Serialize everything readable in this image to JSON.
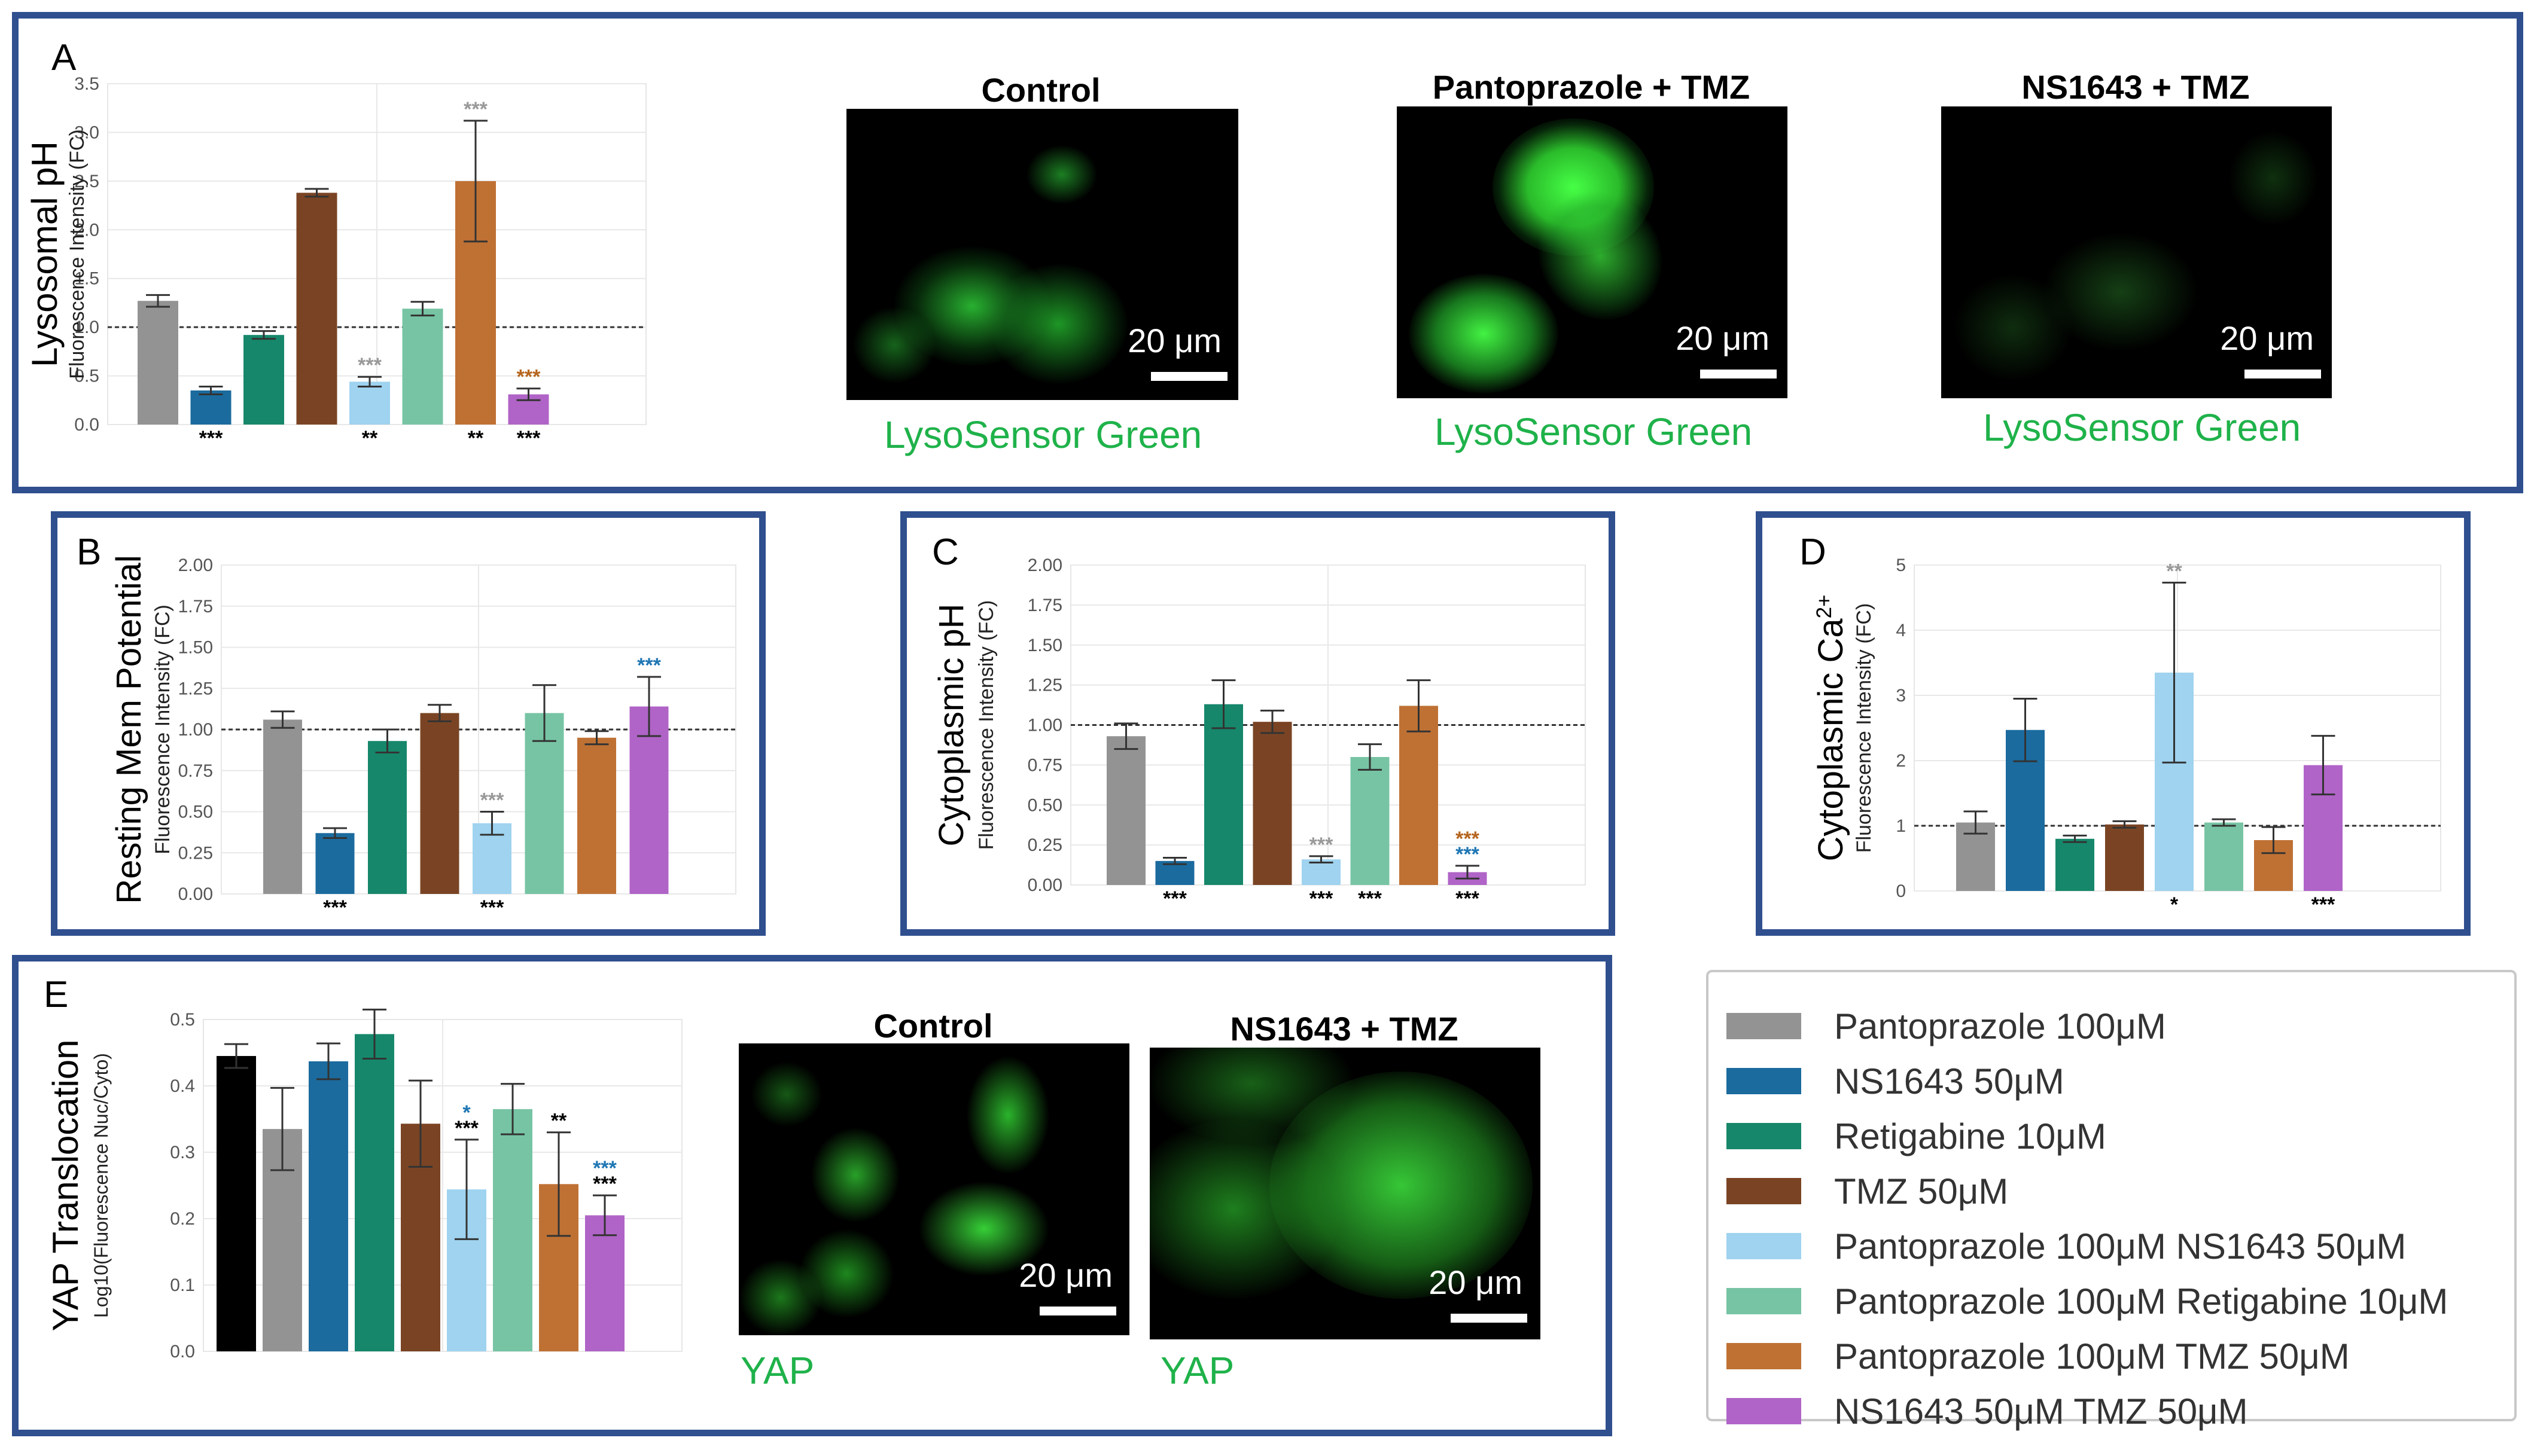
{
  "legend": [
    {
      "label": "Pantoprazole 100μM",
      "color": "#939393"
    },
    {
      "label": "NS1643 50μM",
      "color": "#1b6b9e"
    },
    {
      "label": "Retigabine 10μM",
      "color": "#16876a"
    },
    {
      "label": "TMZ 50μM",
      "color": "#7a4424"
    },
    {
      "label": "Pantoprazole 100μM NS1643 50μM",
      "color": "#9fd3ef"
    },
    {
      "label": "Pantoprazole 100μM Retigabine 10μM",
      "color": "#77c4a4"
    },
    {
      "label": "Pantoprazole 100μM TMZ 50μM",
      "color": "#bf7134"
    },
    {
      "label": "NS1643 50μM TMZ 50μM",
      "color": "#b064c7"
    }
  ],
  "panels": {
    "A": {
      "letter": "A"
    },
    "B": {
      "letter": "B"
    },
    "C": {
      "letter": "C"
    },
    "D": {
      "letter": "D"
    },
    "E": {
      "letter": "E"
    }
  },
  "micrographs": {
    "a_control": {
      "title": "Control",
      "scale": "20 μm",
      "caption": "LysoSensor Green"
    },
    "a_panto": {
      "title": "Pantoprazole + TMZ",
      "scale": "20 μm",
      "caption": "LysoSensor Green"
    },
    "a_ns": {
      "title": "NS1643 + TMZ",
      "scale": "20 μm",
      "caption": "LysoSensor Green"
    },
    "e_control": {
      "title": "Control",
      "scale": "20 μm",
      "caption": "YAP"
    },
    "e_ns": {
      "title": "NS1643 + TMZ",
      "scale": "20 μm",
      "caption": "YAP"
    }
  },
  "chart_data": [
    {
      "id": "A",
      "type": "bar",
      "ylabel": "Lysosomal pH",
      "ylabel2": "Fluorescence Intensity (FC)",
      "ylim": [
        0,
        3.5
      ],
      "yticks": [
        "0.0",
        "0.5",
        "1.0",
        "1.5",
        "2.0",
        "2.5",
        "3.0",
        "3.5"
      ],
      "reference_line": 1.0,
      "grid": true,
      "bars": [
        {
          "series": "Pantoprazole 100μM",
          "color": "#939393",
          "value": 1.27,
          "err": 0.06,
          "above": [],
          "below": []
        },
        {
          "series": "NS1643 50μM",
          "color": "#1b6b9e",
          "value": 0.35,
          "err": 0.04,
          "above": [],
          "below": [
            {
              "t": "***",
              "c": "#000000"
            }
          ]
        },
        {
          "series": "Retigabine 10μM",
          "color": "#16876a",
          "value": 0.92,
          "err": 0.04,
          "above": [],
          "below": []
        },
        {
          "series": "TMZ 50μM",
          "color": "#7a4424",
          "value": 2.38,
          "err": 0.04,
          "above": [],
          "below": []
        },
        {
          "series": "Pantoprazole 100μM NS1643 50μM",
          "color": "#9fd3ef",
          "value": 0.44,
          "err": 0.05,
          "above": [
            {
              "t": "***",
              "c": "#999999"
            }
          ],
          "below": [
            {
              "t": "**",
              "c": "#000000"
            }
          ]
        },
        {
          "series": "Pantoprazole 100μM Retigabine 10μM",
          "color": "#77c4a4",
          "value": 1.19,
          "err": 0.07,
          "above": [],
          "below": []
        },
        {
          "series": "Pantoprazole 100μM TMZ 50μM",
          "color": "#bf7134",
          "value": 2.5,
          "err": 0.62,
          "above": [
            {
              "t": "***",
              "c": "#999999"
            }
          ],
          "below": [
            {
              "t": "**",
              "c": "#000000"
            }
          ]
        },
        {
          "series": "NS1643 50μM TMZ 50μM",
          "color": "#b064c7",
          "value": 0.31,
          "err": 0.06,
          "above": [
            {
              "t": "***",
              "c": "#b5651d"
            }
          ],
          "below": [
            {
              "t": "***",
              "c": "#000000"
            }
          ]
        }
      ]
    },
    {
      "id": "B",
      "type": "bar",
      "ylabel": "Resting Mem Potential",
      "ylabel2": "Fluorescence Intensity (FC)",
      "ylim": [
        0,
        2.0
      ],
      "yticks": [
        "0.00",
        "0.25",
        "0.50",
        "0.75",
        "1.00",
        "1.25",
        "1.50",
        "1.75",
        "2.00"
      ],
      "reference_line": 1.0,
      "grid": true,
      "bars": [
        {
          "series": "Pantoprazole 100μM",
          "color": "#939393",
          "value": 1.06,
          "err": 0.05,
          "above": [],
          "below": []
        },
        {
          "series": "NS1643 50μM",
          "color": "#1b6b9e",
          "value": 0.37,
          "err": 0.03,
          "above": [],
          "below": [
            {
              "t": "***",
              "c": "#000000"
            }
          ]
        },
        {
          "series": "Retigabine 10μM",
          "color": "#16876a",
          "value": 0.93,
          "err": 0.07,
          "above": [],
          "below": []
        },
        {
          "series": "TMZ 50μM",
          "color": "#7a4424",
          "value": 1.1,
          "err": 0.05,
          "above": [],
          "below": []
        },
        {
          "series": "Pantoprazole 100μM NS1643 50μM",
          "color": "#9fd3ef",
          "value": 0.43,
          "err": 0.07,
          "above": [
            {
              "t": "***",
              "c": "#999999"
            }
          ],
          "below": [
            {
              "t": "***",
              "c": "#000000"
            }
          ]
        },
        {
          "series": "Pantoprazole 100μM Retigabine 10μM",
          "color": "#77c4a4",
          "value": 1.1,
          "err": 0.17,
          "above": [],
          "below": []
        },
        {
          "series": "Pantoprazole 100μM TMZ 50μM",
          "color": "#bf7134",
          "value": 0.95,
          "err": 0.04,
          "above": [],
          "below": []
        },
        {
          "series": "NS1643 50μM TMZ 50μM",
          "color": "#b064c7",
          "value": 1.14,
          "err": 0.18,
          "above": [
            {
              "t": "***",
              "c": "#1f77b4"
            }
          ],
          "below": []
        }
      ]
    },
    {
      "id": "C",
      "type": "bar",
      "ylabel": "Cytoplasmic pH",
      "ylabel2": "Fluorescence Intensity (FC)",
      "ylim": [
        0,
        2.0
      ],
      "yticks": [
        "0.00",
        "0.25",
        "0.50",
        "0.75",
        "1.00",
        "1.25",
        "1.50",
        "1.75",
        "2.00"
      ],
      "reference_line": 1.0,
      "grid": true,
      "bars": [
        {
          "series": "Pantoprazole 100μM",
          "color": "#939393",
          "value": 0.93,
          "err": 0.08,
          "above": [],
          "below": []
        },
        {
          "series": "NS1643 50μM",
          "color": "#1b6b9e",
          "value": 0.15,
          "err": 0.02,
          "above": [],
          "below": [
            {
              "t": "***",
              "c": "#000000"
            }
          ]
        },
        {
          "series": "Retigabine 10μM",
          "color": "#16876a",
          "value": 1.13,
          "err": 0.15,
          "above": [],
          "below": []
        },
        {
          "series": "TMZ 50μM",
          "color": "#7a4424",
          "value": 1.02,
          "err": 0.07,
          "above": [],
          "below": []
        },
        {
          "series": "Pantoprazole 100μM NS1643 50μM",
          "color": "#9fd3ef",
          "value": 0.16,
          "err": 0.02,
          "above": [
            {
              "t": "***",
              "c": "#999999"
            }
          ],
          "below": [
            {
              "t": "***",
              "c": "#000000"
            }
          ]
        },
        {
          "series": "Pantoprazole 100μM Retigabine 10μM",
          "color": "#77c4a4",
          "value": 0.8,
          "err": 0.08,
          "above": [],
          "below": [
            {
              "t": "***",
              "c": "#000000"
            }
          ]
        },
        {
          "series": "Pantoprazole 100μM TMZ 50μM",
          "color": "#bf7134",
          "value": 1.12,
          "err": 0.16,
          "above": [],
          "below": []
        },
        {
          "series": "NS1643 50μM TMZ 50μM",
          "color": "#b064c7",
          "value": 0.08,
          "err": 0.04,
          "above": [
            {
              "t": "***",
              "c": "#1f77b4"
            },
            {
              "t": "***",
              "c": "#b5651d"
            }
          ],
          "below": [
            {
              "t": "***",
              "c": "#000000"
            }
          ]
        }
      ]
    },
    {
      "id": "D",
      "type": "bar",
      "ylabel": "Cytoplasmic Ca",
      "ylabel_sup": "2+",
      "ylabel2": "Fluorescence Intensity (FC)",
      "ylim": [
        0,
        5
      ],
      "yticks": [
        "0",
        "1",
        "2",
        "3",
        "4",
        "5"
      ],
      "reference_line": 1.0,
      "grid": true,
      "bars": [
        {
          "series": "Pantoprazole 100μM",
          "color": "#939393",
          "value": 1.05,
          "err": 0.17,
          "above": [],
          "below": []
        },
        {
          "series": "NS1643 50μM",
          "color": "#1b6b9e",
          "value": 2.47,
          "err": 0.48,
          "above": [],
          "below": []
        },
        {
          "series": "Retigabine 10μM",
          "color": "#16876a",
          "value": 0.8,
          "err": 0.05,
          "above": [],
          "below": []
        },
        {
          "series": "TMZ 50μM",
          "color": "#7a4424",
          "value": 1.02,
          "err": 0.05,
          "above": [],
          "below": []
        },
        {
          "series": "Pantoprazole 100μM NS1643 50μM",
          "color": "#9fd3ef",
          "value": 3.35,
          "err": 1.38,
          "above": [
            {
              "t": "**",
              "c": "#999999"
            }
          ],
          "below": [
            {
              "t": "*",
              "c": "#000000"
            }
          ]
        },
        {
          "series": "Pantoprazole 100μM Retigabine 10μM",
          "color": "#77c4a4",
          "value": 1.05,
          "err": 0.05,
          "above": [],
          "below": []
        },
        {
          "series": "Pantoprazole 100μM TMZ 50μM",
          "color": "#bf7134",
          "value": 0.78,
          "err": 0.2,
          "above": [],
          "below": []
        },
        {
          "series": "NS1643 50μM TMZ 50μM",
          "color": "#b064c7",
          "value": 1.93,
          "err": 0.45,
          "above": [],
          "below": [
            {
              "t": "***",
              "c": "#000000"
            }
          ]
        }
      ]
    },
    {
      "id": "E",
      "type": "bar",
      "ylabel": "YAP Translocation",
      "ylabel2": "Log10(Fluorescence Nuc/Cyto)",
      "ylim": [
        0,
        0.5
      ],
      "yticks": [
        "0.0",
        "0.1",
        "0.2",
        "0.3",
        "0.4",
        "0.5"
      ],
      "reference_line": null,
      "grid": true,
      "bars": [
        {
          "series": "",
          "color": "#000000",
          "value": 0.445,
          "err": 0.018,
          "above": [],
          "below": []
        },
        {
          "series": "Pantoprazole 100μM",
          "color": "#939393",
          "value": 0.335,
          "err": 0.062,
          "above": [],
          "below": []
        },
        {
          "series": "NS1643 50μM",
          "color": "#1b6b9e",
          "value": 0.437,
          "err": 0.027,
          "above": [],
          "below": []
        },
        {
          "series": "Retigabine 10μM",
          "color": "#16876a",
          "value": 0.478,
          "err": 0.037,
          "above": [],
          "below": []
        },
        {
          "series": "TMZ 50μM",
          "color": "#7a4424",
          "value": 0.343,
          "err": 0.065,
          "above": [],
          "below": []
        },
        {
          "series": "Pantoprazole 100μM NS1643 50μM",
          "color": "#9fd3ef",
          "value": 0.244,
          "err": 0.075,
          "above": [
            {
              "t": "***",
              "c": "#000000"
            },
            {
              "t": "*",
              "c": "#1f77b4"
            }
          ],
          "below": []
        },
        {
          "series": "Pantoprazole 100μM Retigabine 10μM",
          "color": "#77c4a4",
          "value": 0.365,
          "err": 0.038,
          "above": [],
          "below": []
        },
        {
          "series": "Pantoprazole 100μM TMZ 50μM",
          "color": "#bf7134",
          "value": 0.252,
          "err": 0.078,
          "above": [
            {
              "t": "**",
              "c": "#000000"
            }
          ],
          "below": []
        },
        {
          "series": "NS1643 50μM TMZ 50μM",
          "color": "#b064c7",
          "value": 0.205,
          "err": 0.03,
          "above": [
            {
              "t": "***",
              "c": "#000000"
            },
            {
              "t": "***",
              "c": "#1f77b4"
            }
          ],
          "below": []
        }
      ]
    }
  ]
}
